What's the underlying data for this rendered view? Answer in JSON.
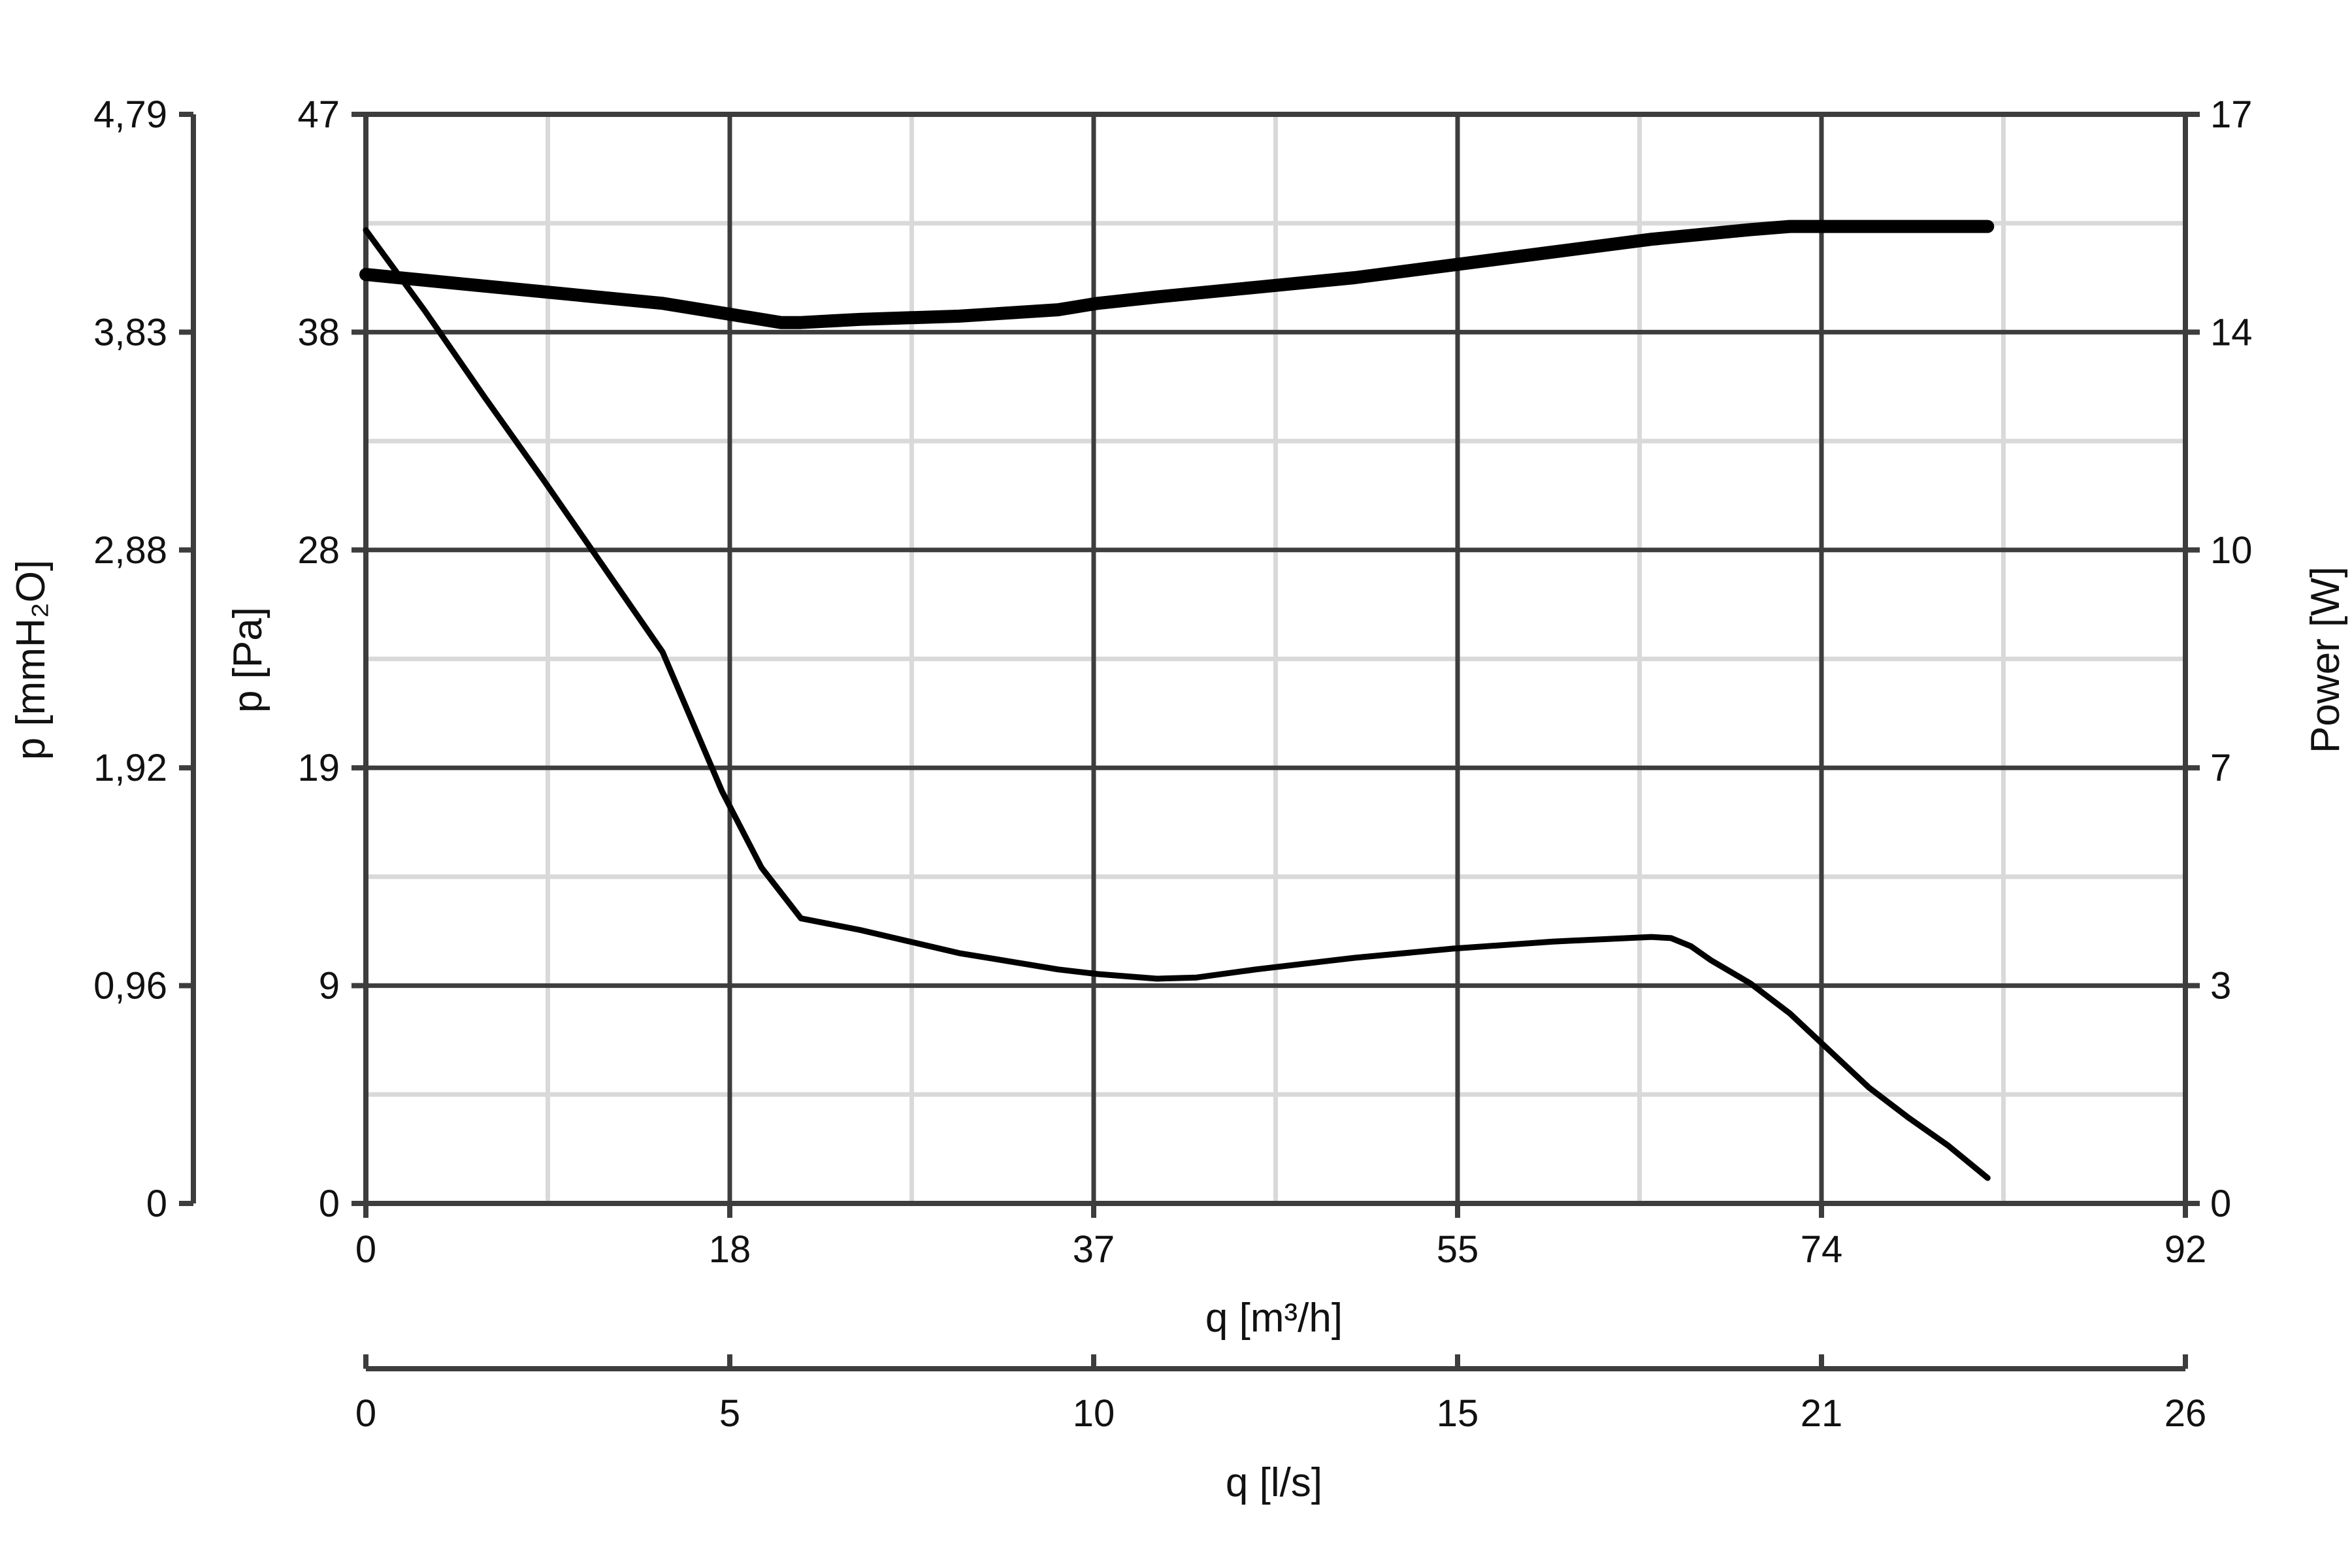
{
  "chart_data": {
    "type": "line",
    "x_axis_primary": {
      "label": "q [m³/h]",
      "range": [
        0,
        92
      ],
      "ticks": [
        "0",
        "18",
        "37",
        "55",
        "74",
        "92"
      ]
    },
    "x_axis_secondary": {
      "label": "q [l/s]",
      "ticks": [
        "0",
        "5",
        "10",
        "15",
        "21",
        "26"
      ]
    },
    "y_axis_left_outer": {
      "label": "p [mmH₂O]",
      "ticks": [
        "0",
        "0,96",
        "1,92",
        "2,88",
        "3,83",
        "4,79"
      ]
    },
    "y_axis_left_inner": {
      "label": "p [Pa]",
      "range": [
        0,
        47
      ],
      "ticks": [
        "0",
        "9",
        "19",
        "28",
        "38",
        "47"
      ]
    },
    "y_axis_right": {
      "label": "Power [W]",
      "range": [
        0,
        17
      ],
      "ticks": [
        "0",
        "3",
        "7",
        "10",
        "14",
        "17"
      ]
    },
    "grid": true,
    "series": [
      {
        "axis": "power",
        "x": [
          0,
          5,
          10,
          15,
          18,
          21,
          22,
          25,
          30,
          35,
          37,
          40,
          45,
          50,
          55,
          60,
          65,
          70,
          72,
          75,
          82
        ],
        "y": [
          14.5,
          14.35,
          14.2,
          14.05,
          13.9,
          13.75,
          13.75,
          13.8,
          13.85,
          13.95,
          14.05,
          14.15,
          14.3,
          14.45,
          14.65,
          14.85,
          15.05,
          15.2,
          15.25,
          15.25,
          15.25
        ]
      },
      {
        "axis": "pressure",
        "x": [
          0,
          3,
          6,
          9,
          12,
          15,
          18,
          20,
          22,
          25,
          30,
          35,
          37,
          40,
          42,
          45,
          50,
          55,
          60,
          65,
          66,
          67,
          68,
          70,
          72,
          74,
          76,
          78,
          80,
          82
        ],
        "y": [
          42,
          38.5,
          34.8,
          31.2,
          27.5,
          23.8,
          17.8,
          14.5,
          12.3,
          11.8,
          10.8,
          10.1,
          9.9,
          9.7,
          9.75,
          10.1,
          10.6,
          11.0,
          11.3,
          11.5,
          11.45,
          11.1,
          10.5,
          9.5,
          8.2,
          6.6,
          5.0,
          3.7,
          2.5,
          1.1
        ]
      }
    ]
  }
}
